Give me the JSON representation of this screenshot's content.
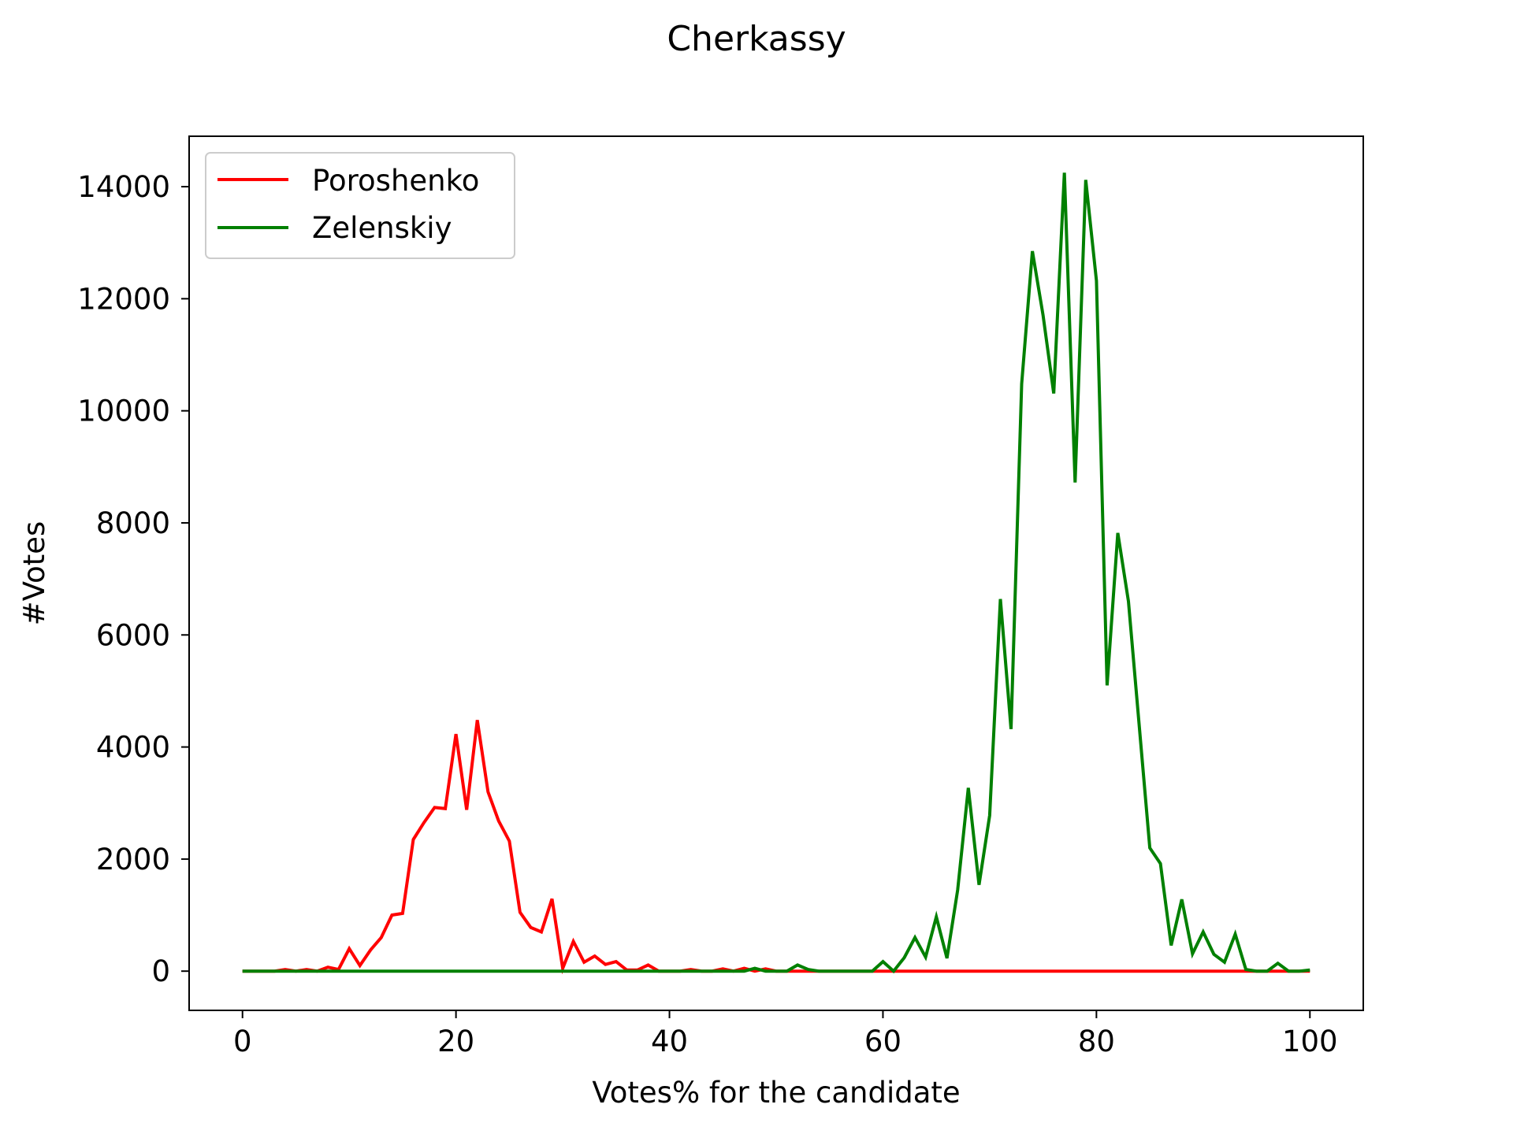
{
  "chart_data": {
    "type": "line",
    "title": "Cherkassy",
    "xlabel": "Votes% for the candidate",
    "ylabel": "#Votes",
    "xlim": [
      -5,
      105
    ],
    "ylim": [
      -700,
      14900
    ],
    "xticks": [
      0,
      20,
      40,
      60,
      80,
      100
    ],
    "yticks": [
      0,
      2000,
      4000,
      6000,
      8000,
      10000,
      12000,
      14000
    ],
    "grid": false,
    "legend_position": "top-left",
    "x": [
      0,
      1,
      2,
      3,
      4,
      5,
      6,
      7,
      8,
      9,
      10,
      11,
      12,
      13,
      14,
      15,
      16,
      17,
      18,
      19,
      20,
      21,
      22,
      23,
      24,
      25,
      26,
      27,
      28,
      29,
      30,
      31,
      32,
      33,
      34,
      35,
      36,
      37,
      38,
      39,
      40,
      41,
      42,
      43,
      44,
      45,
      46,
      47,
      48,
      49,
      50,
      51,
      52,
      53,
      54,
      55,
      56,
      57,
      58,
      59,
      60,
      61,
      62,
      63,
      64,
      65,
      66,
      67,
      68,
      69,
      70,
      71,
      72,
      73,
      74,
      75,
      76,
      77,
      78,
      79,
      80,
      81,
      82,
      83,
      84,
      85,
      86,
      87,
      88,
      89,
      90,
      91,
      92,
      93,
      94,
      95,
      96,
      97,
      98,
      99,
      100
    ],
    "series": [
      {
        "name": "Poroshenko",
        "color": "#ff0000",
        "values": [
          0,
          0,
          0,
          0,
          30,
          0,
          30,
          0,
          70,
          30,
          400,
          100,
          380,
          600,
          1000,
          1030,
          2350,
          2650,
          2920,
          2900,
          4230,
          2880,
          4480,
          3200,
          2680,
          2320,
          1050,
          780,
          700,
          1290,
          50,
          530,
          160,
          270,
          120,
          170,
          20,
          20,
          110,
          0,
          0,
          0,
          30,
          0,
          0,
          40,
          0,
          50,
          0,
          40,
          0,
          0,
          0,
          0,
          0,
          0,
          0,
          0,
          0,
          0,
          0,
          0,
          0,
          0,
          0,
          0,
          0,
          0,
          0,
          0,
          0,
          0,
          0,
          0,
          0,
          0,
          0,
          0,
          0,
          0,
          0,
          0,
          0,
          0,
          0,
          0,
          0,
          0,
          0,
          0,
          0,
          0,
          0,
          0,
          0,
          0,
          0,
          0,
          0,
          0,
          0
        ]
      },
      {
        "name": "Zelenskiy",
        "color": "#008000",
        "values": [
          0,
          0,
          0,
          0,
          0,
          0,
          0,
          0,
          0,
          0,
          0,
          0,
          0,
          0,
          0,
          0,
          0,
          0,
          0,
          0,
          0,
          0,
          0,
          0,
          0,
          0,
          0,
          0,
          0,
          0,
          0,
          0,
          0,
          0,
          0,
          0,
          0,
          0,
          0,
          0,
          0,
          0,
          0,
          0,
          0,
          0,
          0,
          0,
          50,
          0,
          0,
          0,
          110,
          30,
          0,
          0,
          0,
          0,
          0,
          0,
          170,
          0,
          240,
          600,
          250,
          970,
          230,
          1450,
          3270,
          1540,
          2780,
          6640,
          4320,
          10480,
          12850,
          11710,
          10310,
          14250,
          8720,
          14120,
          12320,
          5100,
          7820,
          6600,
          4410,
          2200,
          1920,
          460,
          1280,
          310,
          700,
          300,
          160,
          660,
          30,
          0,
          0,
          140,
          0,
          0,
          20
        ]
      }
    ]
  }
}
